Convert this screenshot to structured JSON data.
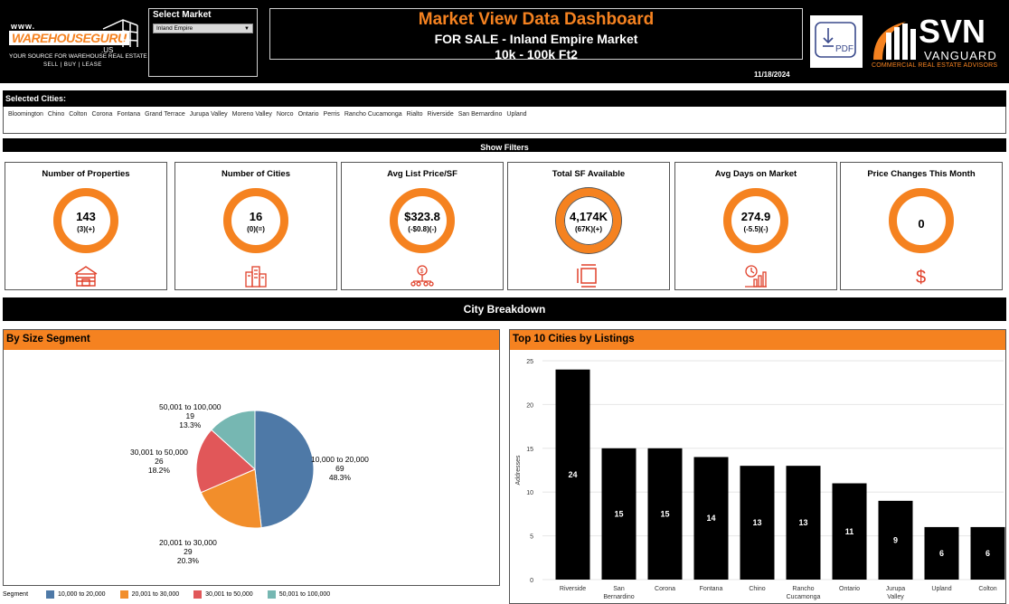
{
  "header": {
    "logo_left": {
      "www": "www.",
      "brand": "WAREHOUSEGURU",
      "suffix": ".US",
      "tagline": "YOUR SOURCE FOR WAREHOUSE REAL ESTATE",
      "tagline2": "SELL | BUY | LEASE"
    },
    "market_label": "Select Market",
    "market_selected": "Inland Empire",
    "title": "Market View Data Dashboard",
    "subtitle": "FOR SALE - Inland Empire Market",
    "size_range": "10k - 100k Ft2",
    "date": "11/18/2024",
    "pdf_label": "PDF",
    "logo_right": {
      "name": "SVN",
      "sub": "VANGUARD",
      "tag": "COMMERCIAL REAL ESTATE ADVISORS"
    },
    "colors": {
      "accent": "#f58220",
      "background": "#000000"
    }
  },
  "cities": {
    "label": "Selected Cities:",
    "items": [
      "Bloomington",
      "Chino",
      "Colton",
      "Corona",
      "Fontana",
      "Grand Terrace",
      "Jurupa Valley",
      "Moreno Valley",
      "Norco",
      "Ontario",
      "Perris",
      "Rancho Cucamonga",
      "Rialto",
      "Riverside",
      "San Bernardino",
      "Upland"
    ]
  },
  "filters_label": "Show Filters",
  "kpis": [
    {
      "title": "Number of Properties",
      "value": "143",
      "change": "(3)(+)",
      "icon": "warehouse-icon"
    },
    {
      "title": "Number of Cities",
      "value": "16",
      "change": "(0)(=)",
      "icon": "city-buildings-icon"
    },
    {
      "title": "Avg List Price/SF",
      "value": "$323.8",
      "change": "(-$0.8)(-)",
      "icon": "price-network-icon"
    },
    {
      "title": "Total SF Available",
      "value": "4,174K",
      "change": "(67K)(+)",
      "icon": "square-footage-icon"
    },
    {
      "title": "Avg Days on Market",
      "value": "274.9",
      "change": "(-5.5)(-)",
      "icon": "clock-chart-icon"
    },
    {
      "title": "Price Changes This Month",
      "value": "0",
      "change": "",
      "icon": "dollar-icon"
    }
  ],
  "breakdown_label": "City Breakdown",
  "pie_panel": {
    "title": "By Size Segment",
    "legend_title": "Segment"
  },
  "bar_panel": {
    "title": "Top 10 Cities by Listings"
  },
  "chart_data": [
    {
      "type": "pie",
      "title": "By Size Segment",
      "categories": [
        "10,000 to 20,000",
        "20,001 to 30,000",
        "30,001 to 50,000",
        "50,001 to 100,000"
      ],
      "values": [
        69,
        29,
        26,
        19
      ],
      "percent_labels": [
        "48.3%",
        "20.3%",
        "18.2%",
        "13.3%"
      ],
      "colors": [
        "#4e79a7",
        "#f28e2b",
        "#e15759",
        "#76b7b2"
      ],
      "legend_title": "Segment",
      "legend": "bottom"
    },
    {
      "type": "bar",
      "title": "Top 10 Cities by Listings",
      "categories": [
        "Riverside",
        "San Bernardino",
        "Corona",
        "Fontana",
        "Chino",
        "Rancho Cucamonga",
        "Ontario",
        "Jurupa Valley",
        "Upland",
        "Colton"
      ],
      "values": [
        24,
        15,
        15,
        14,
        13,
        13,
        11,
        9,
        6,
        6
      ],
      "ylabel": "Addresses",
      "xlabel": "",
      "ylim": [
        0,
        25
      ],
      "yticks": [
        0,
        5,
        10,
        15,
        20,
        25
      ],
      "grid": true,
      "bar_color": "#000000"
    }
  ]
}
